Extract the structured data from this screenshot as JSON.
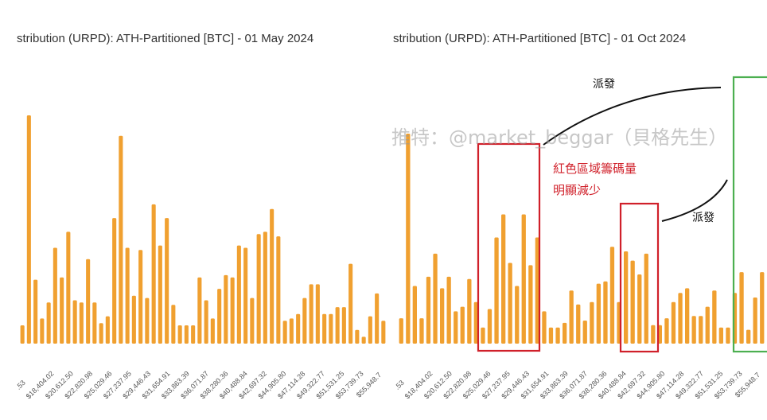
{
  "chart_data": [
    {
      "type": "bar",
      "title": "stribution (URPD): ATH-Partitioned [BTC] - 01 May 2024",
      "color": "#f0a030",
      "tick_labels": [
        ".53",
        "$18,404.02",
        "$20,612.50",
        "$22,820.98",
        "$25,029.46",
        "$27,237.95",
        "$29,446.43",
        "$31,654.91",
        "$33,863.39",
        "$36,071.87",
        "$38,280.36",
        "$40,488.84",
        "$42,697.32",
        "$44,905.80",
        "$47,114.28",
        "$49,322.77",
        "$51,531.25",
        "$53,739.73",
        "$55,948.7"
      ],
      "values": [
        8,
        100,
        28,
        11,
        18,
        42,
        29,
        49,
        19,
        18,
        37,
        18,
        9,
        12,
        55,
        91,
        42,
        21,
        41,
        20,
        61,
        43,
        55,
        17,
        8,
        8,
        8,
        29,
        19,
        11,
        24,
        30,
        29,
        43,
        42,
        20,
        48,
        49,
        59,
        47,
        10,
        11,
        13,
        20,
        26,
        26,
        13,
        13,
        16,
        16,
        35,
        6,
        3,
        12,
        22,
        10
      ]
    },
    {
      "type": "bar",
      "title": "stribution (URPD): ATH-Partitioned [BTC] - 01 Oct 2024",
      "color": "#f0a030",
      "tick_labels": [
        ".53",
        "$18,404.02",
        "$20,612.50",
        "$22,820.98",
        "$25,029.46",
        "$27,237.95",
        "$29,446.43",
        "$31,654.91",
        "$33,863.39",
        "$36,071.87",
        "$38,280.36",
        "$40,488.84",
        "$42,697.32",
        "$44,905.80",
        "$47,114.28",
        "$49,322.77",
        "$51,531.25",
        "$53,739.73",
        "$55,948.7"
      ],
      "values": [
        11,
        91,
        25,
        11,
        29,
        39,
        24,
        29,
        14,
        16,
        28,
        18,
        7,
        15,
        46,
        56,
        35,
        25,
        56,
        34,
        46,
        14,
        7,
        7,
        9,
        23,
        17,
        10,
        18,
        26,
        27,
        42,
        18,
        40,
        36,
        30,
        39,
        8,
        8,
        11,
        18,
        22,
        24,
        12,
        12,
        16,
        23,
        7,
        7,
        22,
        31,
        6,
        20,
        31
      ]
    }
  ],
  "annotations": {
    "red_box_label_line1": "紅色區域籌碼量",
    "red_box_label_line2": "明顯減少",
    "distribute_label_top": "派發",
    "distribute_label_right": "派發",
    "watermark": "推特：@market_beggar（貝格先生）"
  },
  "colors": {
    "bar": "#f0a030",
    "red_box": "#d0202a",
    "green_box": "#4caf50"
  }
}
